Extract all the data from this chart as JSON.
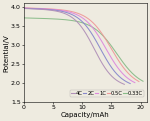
{
  "title": "",
  "xlabel": "Capacity/mAh",
  "ylabel": "Potential/V",
  "xlim": [
    0,
    21
  ],
  "ylim": [
    1.5,
    4.1
  ],
  "xticks": [
    0,
    5,
    10,
    15,
    20
  ],
  "yticks": [
    1.5,
    2.0,
    2.5,
    3.0,
    3.5,
    4.0
  ],
  "curves": [
    {
      "label": "4C",
      "color": "#b090b8",
      "v_start": 3.97,
      "v_end": 1.87,
      "max_cap": 17.2,
      "knee": 0.7,
      "steep": 10
    },
    {
      "label": "2C",
      "color": "#8888cc",
      "v_start": 3.975,
      "v_end": 1.87,
      "max_cap": 18.2,
      "knee": 0.72,
      "steep": 10
    },
    {
      "label": "1C",
      "color": "#dd88dd",
      "v_start": 3.98,
      "v_end": 1.87,
      "max_cap": 19.0,
      "knee": 0.74,
      "steep": 10
    },
    {
      "label": "0.5C",
      "color": "#ee9999",
      "v_start": 3.985,
      "v_end": 1.87,
      "max_cap": 19.7,
      "knee": 0.76,
      "steep": 10
    },
    {
      "label": "0.33C",
      "color": "#88bb88",
      "v_start": 3.72,
      "v_end": 1.87,
      "max_cap": 20.4,
      "knee": 0.78,
      "steep": 10
    }
  ],
  "legend_order": [
    "4C",
    "2C",
    "1C",
    "0.5C",
    "0.33C"
  ],
  "legend_colors": [
    "#b090b8",
    "#8888cc",
    "#dd88dd",
    "#ee9999",
    "#88bb88"
  ],
  "background_color": "#eeebe0",
  "axis_fontsize": 5,
  "legend_fontsize": 3.8
}
